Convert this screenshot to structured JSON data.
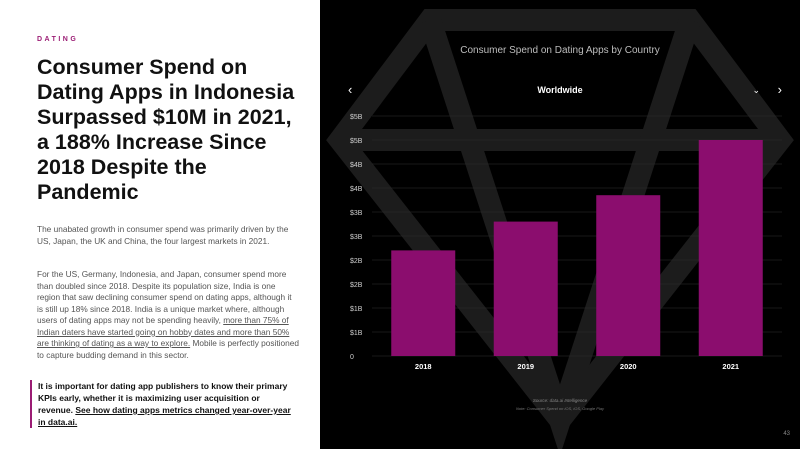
{
  "left": {
    "section_tag": "DATING",
    "headline": "Consumer Spend on Dating Apps in Indonesia Surpassed $10M in 2021, a 188% Increase Since 2018 Despite the Pandemic",
    "para1": "The unabated growth in consumer spend was primarily driven by the US, Japan, the UK and China, the four largest markets in 2021.",
    "para2_text": "For the US, Germany, Indonesia, and Japan, consumer spend more than doubled since 2018. Despite its population size, India is one region that saw declining consumer spend on dating apps, although it is still up 18% since 2018. India is a unique market where, although users of dating apps may not be spending heavily,",
    "para2_link": "more than 75% of Indian daters have started going on hobby dates and more than 50% are thinking of dating as a way to explore.",
    "para2_end": "Mobile is perfectly positioned to capture budding demand in this sector.",
    "callout_text": "It is important for dating app publishers to know their primary KPIs early, whether it is maximizing user acquisition or revenue.",
    "callout_link": "See how dating apps metrics changed year-over-year in data.ai."
  },
  "right": {
    "selector_label": "Worldwide",
    "prev_glyph": "‹",
    "next_glyph": "›",
    "dropdown_glyph": "⌄",
    "source": "Source: data.ai Intelligence",
    "note": "Note: Consumer Spend on iOS, iOS, Google Play",
    "page_number": "43"
  },
  "colors": {
    "accent": "#9b1c74",
    "bar": "#8b0d6e",
    "background_dark": "#000000"
  },
  "chart_data": {
    "type": "bar",
    "title": "Consumer Spend on Dating Apps by Country",
    "xlabel": "",
    "ylabel": "",
    "categories": [
      "2018",
      "2019",
      "2020",
      "2021"
    ],
    "values": [
      2.2,
      2.8,
      3.35,
      4.5
    ],
    "ylim": [
      0,
      5
    ],
    "y_ticks": [
      0,
      0.5,
      1,
      1.5,
      2,
      2.5,
      3,
      3.5,
      4,
      4.5,
      5
    ],
    "y_tick_labels": [
      "0",
      "$1B",
      "$1B",
      "$2B",
      "$2B",
      "$3B",
      "$3B",
      "$4B",
      "$4B",
      "$5B",
      "$5B"
    ],
    "grid": true,
    "legend": "none"
  }
}
